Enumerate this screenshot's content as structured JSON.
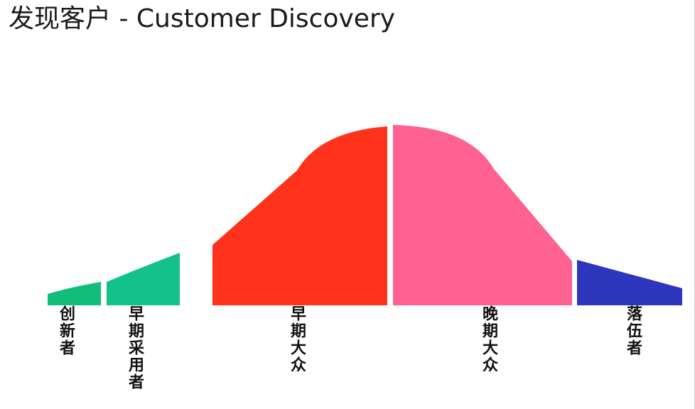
{
  "title": "发现客户 - Customer Discovery",
  "segments": [
    {
      "label": "创新者",
      "color": "#12bd7a"
    },
    {
      "label": "早期采用者",
      "color": "#12c28a"
    },
    {
      "label": "早期大众",
      "color": "#ff321c"
    },
    {
      "label": "晚期大众",
      "color": "#ff6190"
    },
    {
      "label": "落伍者",
      "color": "#2f36be"
    }
  ]
}
